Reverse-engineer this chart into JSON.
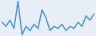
{
  "values": [
    40,
    30,
    45,
    25,
    90,
    10,
    30,
    20,
    35,
    25,
    70,
    50,
    20,
    30,
    25,
    35,
    20,
    30,
    25,
    40,
    30,
    55,
    45,
    60
  ],
  "line_color": "#4393c7",
  "bg_color": "#e8eef5",
  "linewidth": 1.1
}
